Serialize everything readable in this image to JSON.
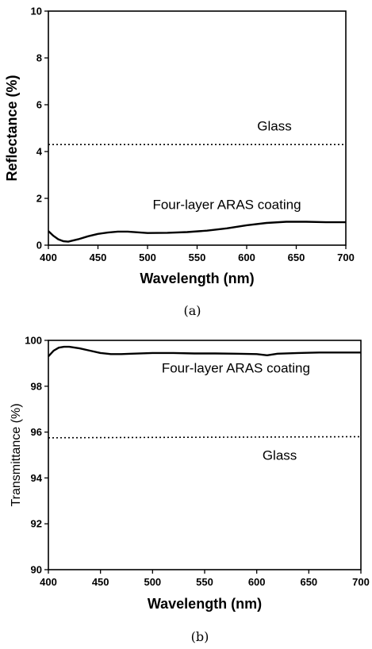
{
  "chart_data": [
    {
      "type": "line",
      "panel_label": "(a)",
      "xlabel": "Wavelength (nm)",
      "ylabel": "Reflectance (%)",
      "xlim": [
        400,
        700
      ],
      "ylim": [
        0,
        10
      ],
      "xticks": [
        400,
        450,
        500,
        550,
        600,
        650,
        700
      ],
      "yticks": [
        0,
        2,
        4,
        6,
        8,
        10
      ],
      "grid": false,
      "series": [
        {
          "name": "Four-layer ARAS coating",
          "style": "solid",
          "x": [
            400,
            405,
            410,
            415,
            420,
            430,
            440,
            450,
            460,
            470,
            480,
            490,
            500,
            520,
            540,
            560,
            580,
            600,
            620,
            640,
            660,
            680,
            700
          ],
          "y": [
            0.6,
            0.4,
            0.25,
            0.17,
            0.15,
            0.25,
            0.38,
            0.48,
            0.54,
            0.58,
            0.58,
            0.55,
            0.52,
            0.53,
            0.56,
            0.62,
            0.72,
            0.85,
            0.95,
            1.0,
            1.0,
            0.98,
            0.98
          ]
        },
        {
          "name": "Glass",
          "style": "dotted",
          "x": [
            400,
            700
          ],
          "y": [
            4.3,
            4.3
          ]
        }
      ],
      "annotations": [
        {
          "text": "Glass",
          "x": 628,
          "y": 4.9
        },
        {
          "text": "Four-layer ARAS coating",
          "x": 580,
          "y": 1.55
        }
      ]
    },
    {
      "type": "line",
      "panel_label": "(b)",
      "xlabel": "Wavelength (nm)",
      "ylabel": "Transmittance (%)",
      "xlim": [
        400,
        700
      ],
      "ylim": [
        90,
        100
      ],
      "xticks": [
        400,
        450,
        500,
        550,
        600,
        650,
        700
      ],
      "yticks": [
        90,
        92,
        94,
        96,
        98,
        100
      ],
      "grid": false,
      "series": [
        {
          "name": "Four-layer ARAS coating",
          "style": "solid",
          "x": [
            400,
            405,
            410,
            415,
            420,
            430,
            440,
            450,
            460,
            470,
            480,
            500,
            520,
            540,
            560,
            580,
            600,
            610,
            620,
            640,
            660,
            680,
            700
          ],
          "y": [
            99.3,
            99.55,
            99.68,
            99.72,
            99.72,
            99.65,
            99.55,
            99.45,
            99.4,
            99.4,
            99.42,
            99.45,
            99.45,
            99.43,
            99.43,
            99.42,
            99.4,
            99.35,
            99.42,
            99.45,
            99.47,
            99.47,
            99.47
          ]
        },
        {
          "name": "Glass",
          "style": "dotted",
          "x": [
            400,
            700
          ],
          "y": [
            95.75,
            95.8
          ]
        }
      ],
      "annotations": [
        {
          "text": "Four-layer ARAS coating",
          "x": 580,
          "y": 98.6
        },
        {
          "text": "Glass",
          "x": 622,
          "y": 94.8
        }
      ]
    }
  ]
}
